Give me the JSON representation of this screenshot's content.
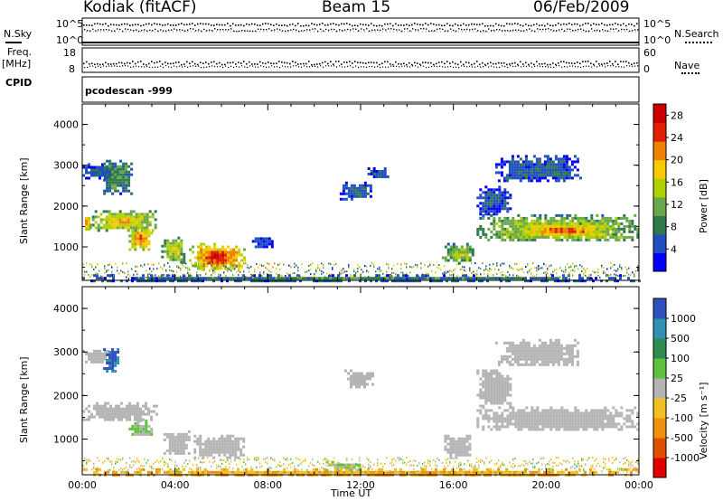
{
  "header": {
    "station": "Kodiak (fitACF)",
    "beam": "Beam 15",
    "date": "06/Feb/2009"
  },
  "strip_panels": {
    "nsky_label": "N.Sky",
    "nsky_ticks": [
      "10^5",
      "10^0"
    ],
    "nsearch_label": "N.Search",
    "nsearch_ticks": [
      "10^5",
      "10^0"
    ],
    "freq_label": "Freq.",
    "freq_unit": "[MHz]",
    "freq_ticks": [
      "18",
      "8"
    ],
    "nave_label": "Nave",
    "nave_ticks": [
      "60",
      "0"
    ],
    "cpid_label": "CPID",
    "cpid_value": "pcodescan -999",
    "colors": {
      "nsky": "#000000",
      "nsearch": "#000000"
    }
  },
  "chart_data": [
    {
      "type": "heatmap",
      "title": "",
      "ylabel": "Slant Range [km]",
      "xlabel": "",
      "x_range_hours": [
        0,
        24
      ],
      "ylim": [
        180,
        4500
      ],
      "yticks": [
        "4000",
        "3000",
        "2000",
        "1000"
      ],
      "colorbar": {
        "label": "Power [dB]",
        "ticks": [
          "28",
          "24",
          "20",
          "16",
          "12",
          "8",
          "4"
        ],
        "range": [
          0,
          30
        ],
        "colors": [
          "#0000ff",
          "#2050c0",
          "#2f7a4a",
          "#6aa84a",
          "#b0d000",
          "#f4cc00",
          "#f08000",
          "#e02000",
          "#cc0000"
        ]
      },
      "regions": [
        {
          "t0": 0.0,
          "t1": 0.3,
          "r0": 1450,
          "r1": 1800,
          "value": 22
        },
        {
          "t0": 0.3,
          "t1": 3.2,
          "r0": 1400,
          "r1": 1900,
          "value": 18
        },
        {
          "t0": 0.0,
          "t1": 1.5,
          "r0": 2700,
          "r1": 3050,
          "value": 6
        },
        {
          "t0": 0.9,
          "t1": 2.1,
          "r0": 2300,
          "r1": 3200,
          "value": 10
        },
        {
          "t0": 2.0,
          "t1": 3.0,
          "r0": 950,
          "r1": 1500,
          "value": 22
        },
        {
          "t0": 3.4,
          "t1": 4.4,
          "r0": 650,
          "r1": 1250,
          "value": 16
        },
        {
          "t0": 4.6,
          "t1": 7.0,
          "r0": 450,
          "r1": 1100,
          "value": 24
        },
        {
          "t0": 7.2,
          "t1": 8.2,
          "r0": 1000,
          "r1": 1300,
          "value": 4
        },
        {
          "t0": 11.1,
          "t1": 12.4,
          "r0": 2200,
          "r1": 2600,
          "value": 6
        },
        {
          "t0": 12.3,
          "t1": 13.2,
          "r0": 2700,
          "r1": 2950,
          "value": 6
        },
        {
          "t0": 15.5,
          "t1": 16.9,
          "r0": 600,
          "r1": 1100,
          "value": 14
        },
        {
          "t0": 17.0,
          "t1": 24.0,
          "r0": 1150,
          "r1": 1800,
          "value": 16
        },
        {
          "t0": 18.5,
          "t1": 23.0,
          "r0": 1250,
          "r1": 1600,
          "value": 22
        },
        {
          "t0": 17.0,
          "t1": 18.5,
          "r0": 1800,
          "r1": 2500,
          "value": 6
        },
        {
          "t0": 17.8,
          "t1": 21.5,
          "r0": 2600,
          "r1": 3250,
          "value": 6
        },
        {
          "t0": 0.0,
          "t1": 24.0,
          "r0": 180,
          "r1": 330,
          "value": 8
        }
      ]
    },
    {
      "type": "heatmap",
      "title": "",
      "ylabel": "Slant Range [km]",
      "xlabel": "Time UT",
      "x_range_hours": [
        0,
        24
      ],
      "xticks": [
        "00:00",
        "04:00",
        "08:00",
        "12:00",
        "16:00",
        "20:00",
        "00:00"
      ],
      "ylim": [
        180,
        4500
      ],
      "yticks": [
        "4000",
        "3000",
        "2000",
        "1000"
      ],
      "colorbar": {
        "label": "Velocity [m s⁻¹]",
        "ticks": [
          "1000",
          "500",
          "100",
          "25",
          "-25",
          "-100",
          "-500",
          "-1000"
        ],
        "colors": [
          "#3050c0",
          "#3090b0",
          "#2f8a50",
          "#60c040",
          "#b4b4b4",
          "#f0c020",
          "#f09010",
          "#e05000",
          "#e00000"
        ]
      },
      "regions": [
        {
          "t0": 0.0,
          "t1": 3.2,
          "r0": 1450,
          "r1": 1850,
          "value": 0
        },
        {
          "t0": 0.0,
          "t1": 1.2,
          "r0": 2750,
          "r1": 3050,
          "value": 0
        },
        {
          "t0": 0.9,
          "t1": 1.6,
          "r0": 2550,
          "r1": 3150,
          "value": 500
        },
        {
          "t0": 2.0,
          "t1": 3.0,
          "r0": 1050,
          "r1": 1450,
          "value": 100
        },
        {
          "t0": 3.5,
          "t1": 4.6,
          "r0": 650,
          "r1": 1200,
          "value": 0
        },
        {
          "t0": 4.8,
          "t1": 7.0,
          "r0": 600,
          "r1": 1100,
          "value": 0
        },
        {
          "t0": 11.3,
          "t1": 12.5,
          "r0": 2200,
          "r1": 2600,
          "value": 0
        },
        {
          "t0": 15.6,
          "t1": 16.8,
          "r0": 600,
          "r1": 1100,
          "value": 0
        },
        {
          "t0": 17.0,
          "t1": 24.0,
          "r0": 1200,
          "r1": 1750,
          "value": 0
        },
        {
          "t0": 17.0,
          "t1": 18.5,
          "r0": 1750,
          "r1": 2600,
          "value": 0
        },
        {
          "t0": 17.8,
          "t1": 21.5,
          "r0": 2700,
          "r1": 3300,
          "value": 0
        },
        {
          "t0": 10.5,
          "t1": 12.0,
          "r0": 300,
          "r1": 500,
          "value": 100
        },
        {
          "t0": 0.0,
          "t1": 24.0,
          "r0": 180,
          "r1": 330,
          "value": -100
        }
      ]
    }
  ]
}
